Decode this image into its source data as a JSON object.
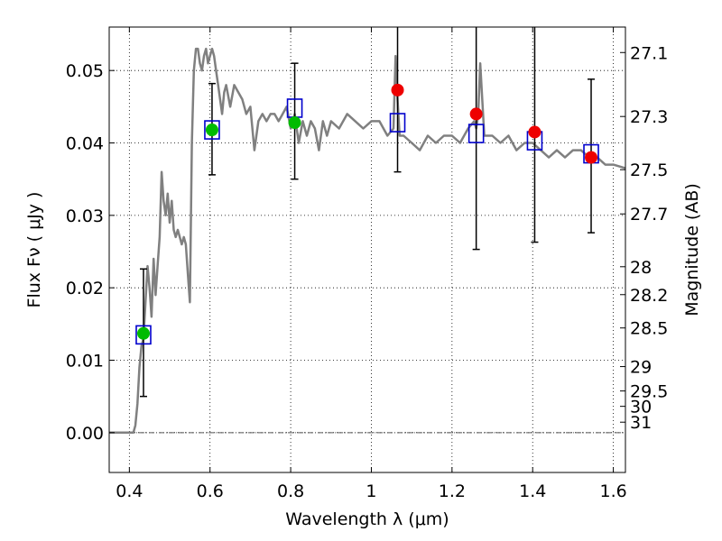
{
  "chart_data": {
    "type": "scatter",
    "xlabel": "Wavelength  λ (μm)",
    "ylabel": "Flux  Fν  ( μJy )",
    "ylabel_right": "Magnitude (AB)",
    "xlim": [
      0.35,
      1.63
    ],
    "ylim": [
      -0.0055,
      0.056
    ],
    "x_ticks": [
      0.4,
      0.6,
      0.8,
      1.0,
      1.2,
      1.4,
      1.6
    ],
    "x_tick_labels": [
      "0.4",
      "0.6",
      "0.8",
      "1",
      "1.2",
      "1.4",
      "1.6"
    ],
    "y_ticks": [
      0.0,
      0.01,
      0.02,
      0.03,
      0.04,
      0.05
    ],
    "y_tick_labels": [
      "0.00",
      "0.01",
      "0.02",
      "0.03",
      "0.04",
      "0.05"
    ],
    "right_ticks": [
      {
        "label": "27.1",
        "mag": 27.1
      },
      {
        "label": "27.3",
        "mag": 27.3
      },
      {
        "label": "27.5",
        "mag": 27.5
      },
      {
        "label": "27.7",
        "mag": 27.7
      },
      {
        "label": "28",
        "mag": 28.0
      },
      {
        "label": "28.2",
        "mag": 28.2
      },
      {
        "label": "28.5",
        "mag": 28.5
      },
      {
        "label": "29",
        "mag": 29.0
      },
      {
        "label": "29.5",
        "mag": 29.5
      },
      {
        "label": "30",
        "mag": 30.0
      },
      {
        "label": "31",
        "mag": 31.0
      }
    ],
    "grid": true,
    "colors": {
      "model": "#808080",
      "box": "#0000cc",
      "green": "#00bb00",
      "red": "#ee0000",
      "errorbar": "#000000"
    },
    "model_spectrum": {
      "x": [
        0.35,
        0.41,
        0.415,
        0.42,
        0.425,
        0.43,
        0.435,
        0.44,
        0.445,
        0.45,
        0.455,
        0.46,
        0.465,
        0.47,
        0.475,
        0.48,
        0.485,
        0.49,
        0.495,
        0.5,
        0.505,
        0.51,
        0.515,
        0.52,
        0.525,
        0.53,
        0.535,
        0.54,
        0.545,
        0.55,
        0.555,
        0.56,
        0.565,
        0.57,
        0.575,
        0.58,
        0.585,
        0.59,
        0.595,
        0.6,
        0.605,
        0.61,
        0.615,
        0.62,
        0.625,
        0.63,
        0.635,
        0.64,
        0.65,
        0.66,
        0.67,
        0.68,
        0.69,
        0.7,
        0.71,
        0.72,
        0.73,
        0.74,
        0.75,
        0.76,
        0.77,
        0.78,
        0.79,
        0.8,
        0.81,
        0.82,
        0.83,
        0.84,
        0.85,
        0.86,
        0.87,
        0.88,
        0.89,
        0.9,
        0.92,
        0.94,
        0.96,
        0.98,
        1.0,
        1.02,
        1.04,
        1.055,
        1.06,
        1.065,
        1.07,
        1.08,
        1.1,
        1.12,
        1.14,
        1.16,
        1.18,
        1.2,
        1.22,
        1.24,
        1.255,
        1.26,
        1.265,
        1.27,
        1.28,
        1.3,
        1.32,
        1.34,
        1.36,
        1.38,
        1.4,
        1.42,
        1.44,
        1.46,
        1.48,
        1.5,
        1.52,
        1.54,
        1.56,
        1.58,
        1.6,
        1.63
      ],
      "y": [
        0.0,
        0.0,
        0.001,
        0.004,
        0.009,
        0.012,
        0.013,
        0.018,
        0.023,
        0.02,
        0.016,
        0.024,
        0.019,
        0.023,
        0.027,
        0.036,
        0.032,
        0.03,
        0.033,
        0.029,
        0.032,
        0.028,
        0.027,
        0.028,
        0.027,
        0.026,
        0.027,
        0.026,
        0.022,
        0.018,
        0.04,
        0.05,
        0.053,
        0.053,
        0.051,
        0.05,
        0.052,
        0.053,
        0.051,
        0.052,
        0.053,
        0.052,
        0.05,
        0.048,
        0.046,
        0.044,
        0.047,
        0.048,
        0.045,
        0.048,
        0.047,
        0.046,
        0.044,
        0.045,
        0.039,
        0.043,
        0.044,
        0.043,
        0.044,
        0.044,
        0.043,
        0.044,
        0.045,
        0.042,
        0.044,
        0.04,
        0.043,
        0.041,
        0.043,
        0.042,
        0.039,
        0.043,
        0.041,
        0.043,
        0.042,
        0.044,
        0.043,
        0.042,
        0.043,
        0.043,
        0.041,
        0.042,
        0.052,
        0.046,
        0.041,
        0.041,
        0.04,
        0.039,
        0.041,
        0.04,
        0.041,
        0.041,
        0.04,
        0.042,
        0.043,
        0.042,
        0.044,
        0.051,
        0.041,
        0.041,
        0.04,
        0.041,
        0.039,
        0.04,
        0.04,
        0.039,
        0.038,
        0.039,
        0.038,
        0.039,
        0.039,
        0.038,
        0.038,
        0.037,
        0.037,
        0.0365
      ]
    },
    "series": [
      {
        "marker": "open-square",
        "x": [
          0.435,
          0.605,
          0.81,
          1.065,
          1.26,
          1.405,
          1.545
        ],
        "y": [
          0.0135,
          0.0418,
          0.0448,
          0.0428,
          0.0413,
          0.0403,
          0.0385
        ]
      },
      {
        "marker": "green-circle",
        "x": [
          0.435,
          0.605,
          0.81
        ],
        "y": [
          0.0137,
          0.0418,
          0.0428
        ]
      },
      {
        "marker": "red-circle",
        "x": [
          1.065,
          1.26,
          1.405,
          1.545
        ],
        "y": [
          0.0473,
          0.044,
          0.0415,
          0.038
        ]
      }
    ],
    "errorbars": [
      {
        "x": 0.435,
        "y_low": 0.005,
        "y_high": 0.0226
      },
      {
        "x": 0.605,
        "y_low": 0.0356,
        "y_high": 0.0482
      },
      {
        "x": 0.81,
        "y_low": 0.035,
        "y_high": 0.051
      },
      {
        "x": 1.065,
        "y_low": 0.036,
        "y_high": 0.058
      },
      {
        "x": 1.26,
        "y_low": 0.0253,
        "y_high": 0.058
      },
      {
        "x": 1.405,
        "y_low": 0.0263,
        "y_high": 0.058
      },
      {
        "x": 1.545,
        "y_low": 0.0276,
        "y_high": 0.0488
      }
    ]
  }
}
